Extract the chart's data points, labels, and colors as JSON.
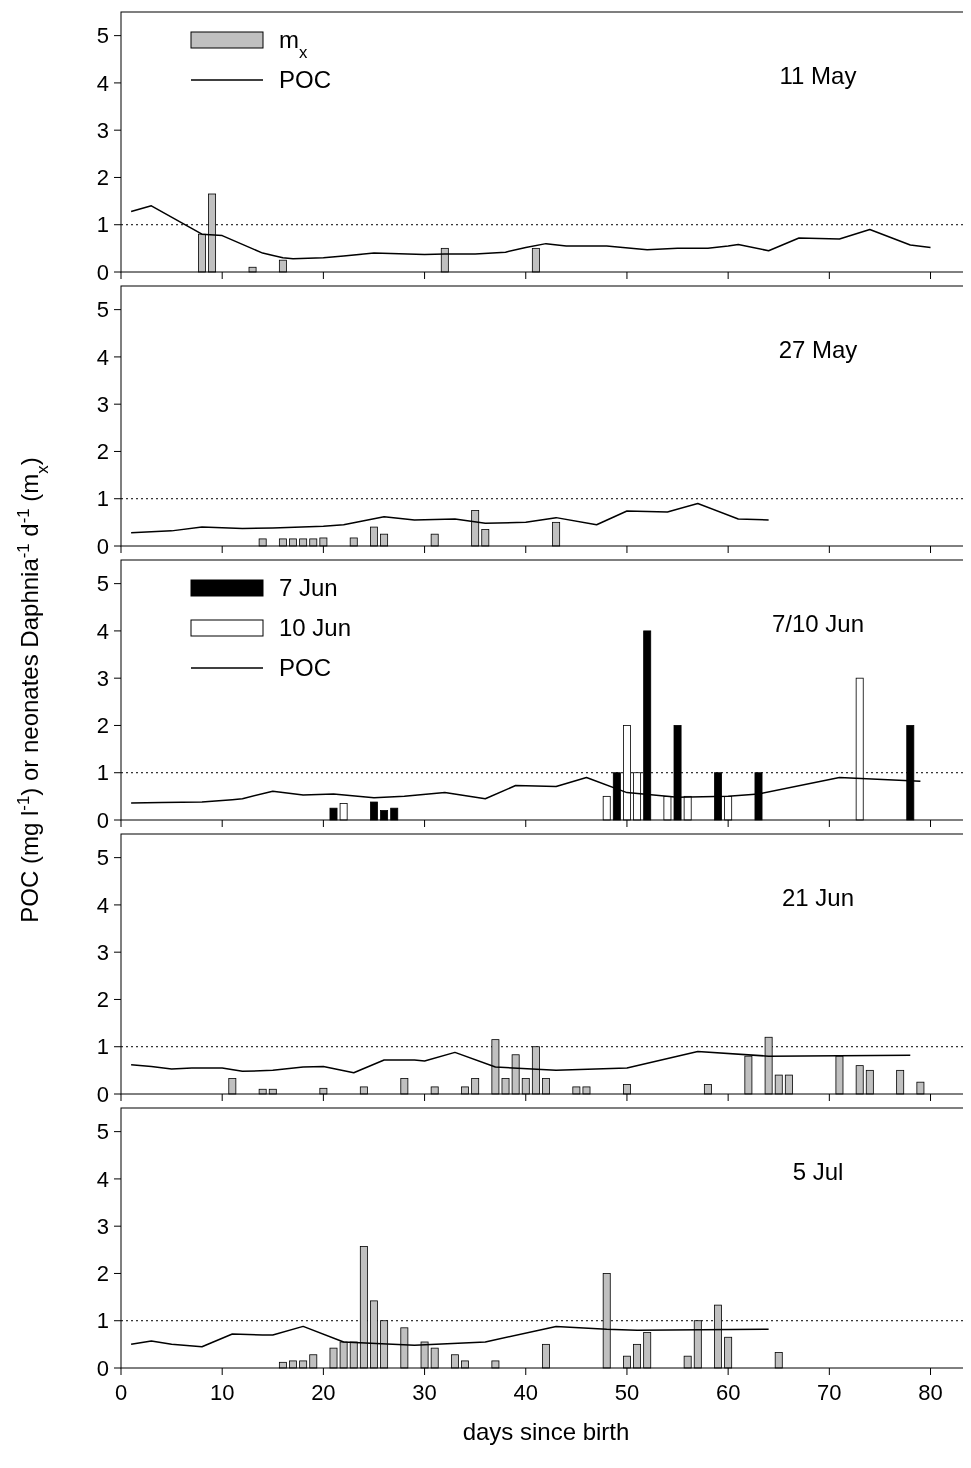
{
  "chart_data": [
    {
      "type": "bar",
      "annotations": [
        "11 May"
      ],
      "xlim": [
        0,
        84
      ],
      "xticks": [
        0,
        10,
        20,
        30,
        40,
        50,
        60,
        70,
        80
      ],
      "ylim": [
        0,
        5.5
      ],
      "yticks": [
        0,
        1,
        2,
        3,
        4,
        5
      ],
      "tick_labels": "y",
      "legend": "top left",
      "ref_lines": [
        {
          "axis": "y",
          "value": 1,
          "line_style": "dotted",
          "color": "#000000"
        }
      ],
      "series": [
        {
          "name": "m$_{x}$",
          "color": "#c0c0c0",
          "x": [
            8,
            9,
            13,
            16,
            32,
            41
          ],
          "values": [
            0.8,
            1.65,
            0.1,
            0.25,
            0.5,
            0.5
          ]
        },
        {
          "type": "line",
          "name": "POC",
          "color": "#000000",
          "x": [
            1,
            3,
            8,
            10,
            14,
            16,
            17,
            20,
            22,
            25,
            30,
            32,
            35,
            38,
            40,
            42,
            44,
            48,
            52,
            55,
            58,
            60,
            61,
            64,
            67,
            69,
            71,
            74,
            78,
            80
          ],
          "values": [
            1.28,
            1.4,
            0.8,
            0.77,
            0.4,
            0.3,
            0.28,
            0.3,
            0.34,
            0.4,
            0.37,
            0.38,
            0.38,
            0.42,
            0.52,
            0.6,
            0.55,
            0.55,
            0.47,
            0.5,
            0.5,
            0.55,
            0.58,
            0.45,
            0.72,
            0.71,
            0.7,
            0.9,
            0.57,
            0.52
          ]
        }
      ]
    },
    {
      "type": "bar",
      "annotations": [
        "27 May"
      ],
      "xlim": [
        0,
        84
      ],
      "xticks": [
        0,
        10,
        20,
        30,
        40,
        50,
        60,
        70,
        80
      ],
      "ylim": [
        0,
        5.5
      ],
      "yticks": [
        0,
        1,
        2,
        3,
        4,
        5
      ],
      "tick_labels": "y",
      "ref_lines": [
        {
          "axis": "y",
          "value": 1,
          "line_style": "dotted",
          "color": "#000000"
        }
      ],
      "series": [
        {
          "color": "#c0c0c0",
          "x": [
            14,
            16,
            17,
            18,
            19,
            20,
            23,
            25,
            26,
            31,
            35,
            36,
            43
          ],
          "values": [
            0.15,
            0.15,
            0.15,
            0.15,
            0.15,
            0.17,
            0.17,
            0.4,
            0.25,
            0.25,
            0.75,
            0.35,
            0.5
          ]
        },
        {
          "type": "line",
          "color": "#000000",
          "x": [
            1,
            5,
            8,
            12,
            15,
            20,
            22,
            26,
            29,
            33,
            36,
            40,
            43,
            47,
            50,
            54,
            57,
            61,
            64
          ],
          "values": [
            0.28,
            0.32,
            0.4,
            0.37,
            0.38,
            0.42,
            0.45,
            0.62,
            0.55,
            0.57,
            0.48,
            0.5,
            0.6,
            0.45,
            0.74,
            0.72,
            0.9,
            0.57,
            0.55
          ]
        }
      ]
    },
    {
      "type": "bar",
      "annotations": [
        "7/10 Jun"
      ],
      "ylabel": "POC (mg l$^{-1}$) or neonates Daphnia$^{-1}$ d$^{-1}$ (m$_{x}$)",
      "xlim": [
        0,
        84
      ],
      "xticks": [
        0,
        10,
        20,
        30,
        40,
        50,
        60,
        70,
        80
      ],
      "ylim": [
        0,
        5.5
      ],
      "yticks": [
        0,
        1,
        2,
        3,
        4,
        5
      ],
      "tick_labels": "y",
      "legend": "top left",
      "ref_lines": [
        {
          "axis": "y",
          "value": 1,
          "line_style": "dotted",
          "color": "#000000"
        }
      ],
      "series": [
        {
          "name": "7 Jun",
          "color": "#000000",
          "x": [
            21,
            25,
            26,
            27,
            49,
            52,
            55,
            59,
            63,
            78
          ],
          "values": [
            0.25,
            0.38,
            0.2,
            0.25,
            1,
            4,
            2,
            1,
            1,
            2
          ]
        },
        {
          "name": "10 Jun",
          "color": "#ffffff",
          "x": [
            22,
            48,
            50,
            51,
            54,
            56,
            60,
            73
          ],
          "values": [
            0.35,
            0.5,
            2,
            1,
            0.5,
            0.5,
            0.5,
            3
          ]
        },
        {
          "type": "line",
          "name": "POC",
          "color": "#000000",
          "x": [
            1,
            4,
            8,
            11,
            12,
            15,
            18,
            21,
            25,
            28,
            32,
            36,
            39,
            43,
            46,
            50,
            55,
            60,
            63,
            71,
            79
          ],
          "values": [
            0.36,
            0.37,
            0.38,
            0.43,
            0.45,
            0.61,
            0.53,
            0.55,
            0.47,
            0.5,
            0.58,
            0.45,
            0.73,
            0.71,
            0.9,
            0.58,
            0.48,
            0.5,
            0.55,
            0.9,
            0.82
          ]
        }
      ]
    },
    {
      "type": "bar",
      "annotations": [
        "21 Jun"
      ],
      "xlim": [
        0,
        84
      ],
      "xticks": [
        0,
        10,
        20,
        30,
        40,
        50,
        60,
        70,
        80
      ],
      "ylim": [
        0,
        5.5
      ],
      "yticks": [
        0,
        1,
        2,
        3,
        4,
        5
      ],
      "tick_labels": "y",
      "ref_lines": [
        {
          "axis": "y",
          "value": 1,
          "line_style": "dotted",
          "color": "#000000"
        }
      ],
      "series": [
        {
          "color": "#c0c0c0",
          "x": [
            11,
            14,
            15,
            20,
            24,
            28,
            31,
            34,
            35,
            37,
            38,
            39,
            40,
            41,
            42,
            45,
            46,
            50,
            58,
            62,
            64,
            65,
            66,
            71,
            73,
            74,
            77,
            79
          ],
          "values": [
            0.33,
            0.1,
            0.1,
            0.12,
            0.15,
            0.33,
            0.15,
            0.15,
            0.33,
            1.15,
            0.33,
            0.83,
            0.33,
            1,
            0.33,
            0.15,
            0.15,
            0.2,
            0.2,
            0.8,
            1.2,
            0.4,
            0.4,
            0.8,
            0.6,
            0.5,
            0.5,
            0.25
          ]
        },
        {
          "type": "line",
          "color": "#000000",
          "x": [
            1,
            3,
            5,
            7,
            10,
            12,
            15,
            18,
            20,
            23,
            26,
            29,
            30,
            33,
            37,
            43,
            50,
            57,
            64,
            78
          ],
          "values": [
            0.62,
            0.58,
            0.53,
            0.55,
            0.55,
            0.48,
            0.5,
            0.57,
            0.58,
            0.45,
            0.72,
            0.72,
            0.7,
            0.88,
            0.57,
            0.5,
            0.55,
            0.9,
            0.8,
            0.82
          ]
        }
      ]
    },
    {
      "type": "bar",
      "annotations": [
        "5 Jul"
      ],
      "xlabel": "days since birth",
      "xlim": [
        0,
        84
      ],
      "xticks": [
        0,
        10,
        20,
        30,
        40,
        50,
        60,
        70,
        80
      ],
      "ylim": [
        0,
        5.5
      ],
      "yticks": [
        0,
        1,
        2,
        3,
        4,
        5
      ],
      "ref_lines": [
        {
          "axis": "y",
          "value": 1,
          "line_style": "dotted",
          "color": "#000000"
        }
      ],
      "series": [
        {
          "color": "#c0c0c0",
          "x": [
            16,
            17,
            18,
            19,
            21,
            22,
            23,
            24,
            25,
            26,
            28,
            30,
            31,
            33,
            34,
            37,
            42,
            48,
            50,
            51,
            52,
            56,
            57,
            59,
            60,
            65
          ],
          "values": [
            0.12,
            0.15,
            0.15,
            0.28,
            0.42,
            0.55,
            0.55,
            2.57,
            1.42,
            1,
            0.85,
            0.55,
            0.42,
            0.28,
            0.15,
            0.15,
            0.5,
            2,
            0.25,
            0.5,
            0.75,
            0.25,
            1,
            1.33,
            0.65,
            0.33
          ]
        },
        {
          "type": "line",
          "color": "#000000",
          "x": [
            1,
            3,
            5,
            8,
            11,
            14,
            15,
            18,
            22,
            29,
            36,
            43,
            48,
            51,
            64
          ],
          "values": [
            0.5,
            0.57,
            0.5,
            0.45,
            0.72,
            0.7,
            0.7,
            0.88,
            0.55,
            0.48,
            0.55,
            0.88,
            0.82,
            0.8,
            0.82
          ]
        }
      ]
    }
  ]
}
